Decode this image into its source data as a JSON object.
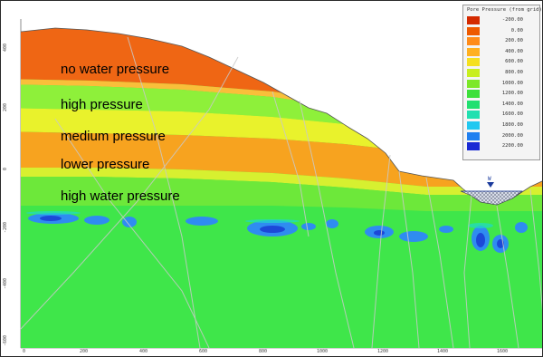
{
  "zone_labels": {
    "no_water": "no water pressure",
    "high": "high pressure",
    "medium": "medium pressure",
    "lower": "lower pressure",
    "high_water": "high water pressure"
  },
  "legend": {
    "title": "Pore Pressure (from grid)",
    "entries": [
      {
        "value": "-200.00",
        "color": "#d42a00"
      },
      {
        "value": "0.00",
        "color": "#ee5a00"
      },
      {
        "value": "200.00",
        "color": "#ff8c1a"
      },
      {
        "value": "400.00",
        "color": "#ffb020"
      },
      {
        "value": "600.00",
        "color": "#f5e020"
      },
      {
        "value": "800.00",
        "color": "#c8ef20"
      },
      {
        "value": "1000.00",
        "color": "#7de828"
      },
      {
        "value": "1200.00",
        "color": "#3ee03a"
      },
      {
        "value": "1400.00",
        "color": "#21e070"
      },
      {
        "value": "1600.00",
        "color": "#21e0b0"
      },
      {
        "value": "1800.00",
        "color": "#21c8f0"
      },
      {
        "value": "2000.00",
        "color": "#2180f0"
      },
      {
        "value": "2200.00",
        "color": "#1a2ad4"
      }
    ]
  },
  "axis": {
    "x_ticks": [
      "0",
      "200",
      "400",
      "600",
      "800",
      "1000",
      "1200",
      "1400",
      "1600"
    ],
    "y_ticks": [
      "400",
      "200",
      "0",
      "-200",
      "-400",
      "-600"
    ]
  },
  "water_table_marker": "W",
  "colors": {
    "background_green": "#3fe64a",
    "band_green": "#8ef03a",
    "band_yellow": "#e9f22c",
    "band_orange": "#f7a31f",
    "surface_orange": "#ef6614",
    "pressure_blue": "#2f8cf0"
  }
}
